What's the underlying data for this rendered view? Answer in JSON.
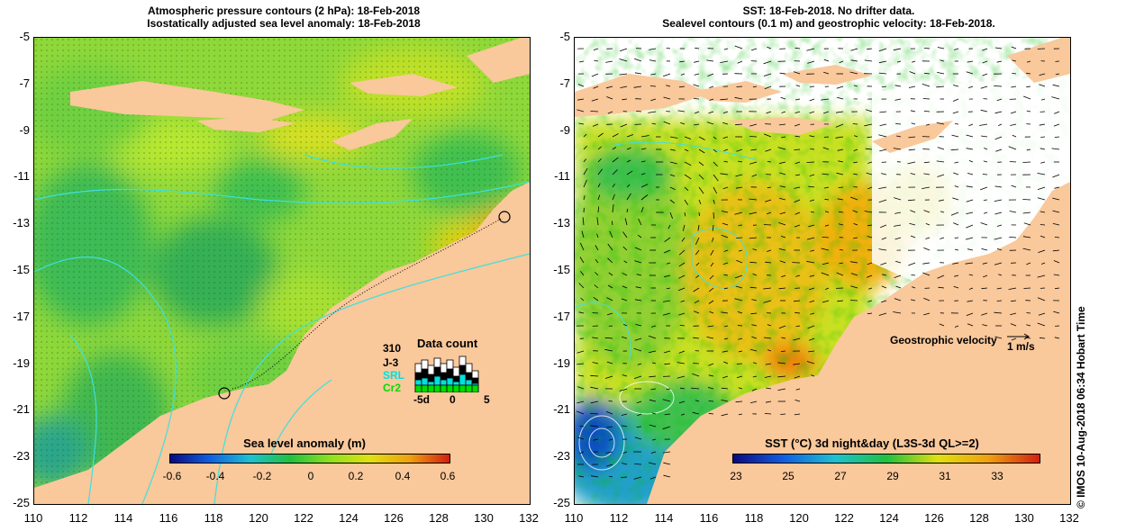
{
  "left_panel": {
    "title_line1": "Atmospheric pressure contours (2 hPa): 18-Feb-2018",
    "title_line2": "Isostatically adjusted sea level anomaly: 18-Feb-2018",
    "colorbar": {
      "title": "Sea level anomaly (m)",
      "ticks": [
        "-0.6",
        "-0.4",
        "-0.2",
        "0",
        "0.2",
        "0.4",
        "0.6"
      ]
    },
    "data_count": {
      "title": "Data count",
      "max_label": "310",
      "series": [
        {
          "name": "J-3",
          "color": "#000000"
        },
        {
          "name": "SRL",
          "color": "#00e0e0"
        },
        {
          "name": "Cr2",
          "color": "#00dd00"
        }
      ],
      "axis_ticks": [
        "-5d",
        "0",
        "5"
      ]
    }
  },
  "right_panel": {
    "title_line1": "SST: 18-Feb-2018. No drifter data.",
    "title_line2": "Sealevel contours (0.1 m) and geostrophic velocity: 18-Feb-2018.",
    "colorbar": {
      "title": "SST (°C) 3d night&day (L3S-3d QL>=2)",
      "ticks": [
        "23",
        "25",
        "27",
        "29",
        "31",
        "33"
      ]
    },
    "velocity_label": "Geostrophic velocity",
    "velocity_scale": "1 m/s",
    "side_note": "© IMOS 10-Aug-2018 06:34 Hobart Time"
  },
  "axes": {
    "y_ticks": [
      "-5",
      "-7",
      "-9",
      "-11",
      "-13",
      "-15",
      "-17",
      "-19",
      "-21",
      "-23",
      "-25"
    ],
    "x_ticks": [
      "110",
      "112",
      "114",
      "116",
      "118",
      "120",
      "122",
      "124",
      "126",
      "128",
      "130",
      "132"
    ]
  },
  "colors": {
    "land": "#f9c89b",
    "sla_scale": [
      "#0a0a80",
      "#1060e0",
      "#20c0d0",
      "#20c040",
      "#90e020",
      "#e0e010",
      "#f0a010",
      "#d02010"
    ],
    "sst_scale": [
      "#0a0a80",
      "#1060e0",
      "#20c0d0",
      "#20c040",
      "#e0e010",
      "#f0a010",
      "#d02010"
    ]
  }
}
